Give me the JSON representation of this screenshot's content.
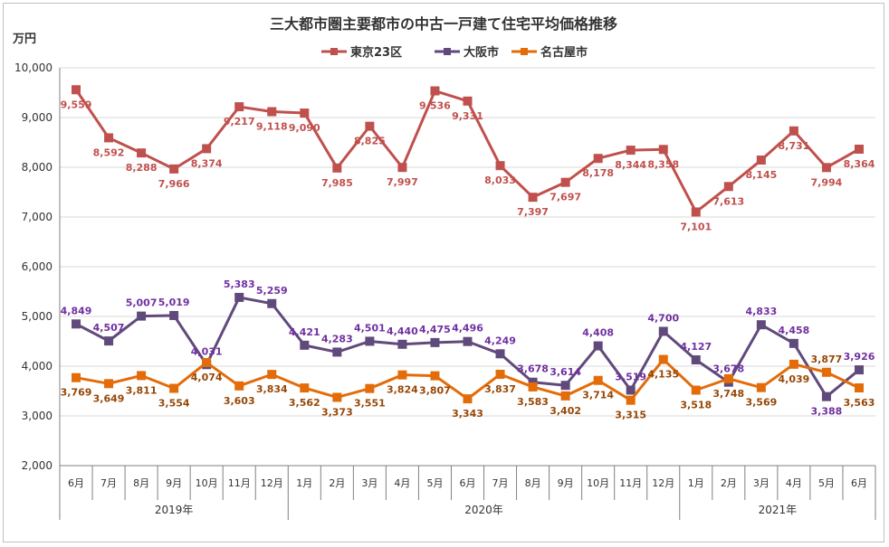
{
  "chart_data": {
    "type": "line",
    "title": "三大都市圏主要都市の中古一戸建て住宅平均価格推移",
    "ylabel": "万円",
    "ylim": [
      2000,
      10000
    ],
    "yticks": [
      2000,
      3000,
      4000,
      5000,
      6000,
      7000,
      8000,
      9000,
      10000
    ],
    "ytick_labels": [
      "2,000",
      "3,000",
      "4,000",
      "5,000",
      "6,000",
      "7,000",
      "8,000",
      "9,000",
      "10,000"
    ],
    "legend_position": "top-center",
    "categories": [
      "6月",
      "7月",
      "8月",
      "9月",
      "10月",
      "11月",
      "12月",
      "1月",
      "2月",
      "3月",
      "4月",
      "5月",
      "6月",
      "7月",
      "8月",
      "9月",
      "10月",
      "11月",
      "12月",
      "1月",
      "2月",
      "3月",
      "4月",
      "5月",
      "6月"
    ],
    "years": [
      {
        "label": "2019年",
        "start": 0,
        "end": 6
      },
      {
        "label": "2020年",
        "start": 7,
        "end": 18
      },
      {
        "label": "2021年",
        "start": 19,
        "end": 24
      }
    ],
    "series": [
      {
        "name": "東京23区",
        "color": "#c0504d",
        "label_color": "#c0504d",
        "values": [
          9559,
          8592,
          8288,
          7966,
          8374,
          9217,
          9118,
          9090,
          7985,
          8825,
          7997,
          9536,
          9331,
          8033,
          7397,
          7697,
          8178,
          8344,
          8358,
          7101,
          7613,
          8145,
          8731,
          7994,
          8364
        ],
        "labels": [
          "9,559",
          "8,592",
          "8,288",
          "7,966",
          "8,374",
          "9,217",
          "9,118",
          "9,090",
          "7,985",
          "8,825",
          "7,997",
          "9,536",
          "9,331",
          "8,033",
          "7,397",
          "7,697",
          "8,178",
          "8,344",
          "8,358",
          "7,101",
          "7,613",
          "8,145",
          "8,731",
          "7,994",
          "8,364"
        ],
        "label_pos": [
          "below",
          "below",
          "below",
          "below",
          "below",
          "below",
          "below",
          "below",
          "below",
          "below",
          "below",
          "below",
          "below",
          "below",
          "below",
          "below",
          "below",
          "below",
          "below",
          "below",
          "below",
          "below",
          "below",
          "below",
          "below"
        ]
      },
      {
        "name": "大阪市",
        "color": "#604a7b",
        "label_color": "#7030a0",
        "values": [
          4849,
          4507,
          5007,
          5019,
          4031,
          5383,
          5259,
          4421,
          4283,
          4501,
          4440,
          4475,
          4496,
          4249,
          3678,
          3614,
          4408,
          3519,
          4700,
          4127,
          3678,
          4833,
          4458,
          3388,
          3926
        ],
        "labels": [
          "4,849",
          "4,507",
          "5,007",
          "5,019",
          "4,031",
          "5,383",
          "5,259",
          "4,421",
          "4,283",
          "4,501",
          "4,440",
          "4,475",
          "4,496",
          "4,249",
          "3,678",
          "3,614",
          "4,408",
          "3,519",
          "4,700",
          "4,127",
          "3,678",
          "4,833",
          "4,458",
          "3,388",
          "3,926"
        ],
        "label_pos": [
          "above",
          "above",
          "above",
          "above",
          "above",
          "above",
          "above",
          "above",
          "above",
          "above",
          "above",
          "above",
          "above",
          "above",
          "above",
          "above",
          "above",
          "above",
          "above",
          "above",
          "above",
          "above",
          "above",
          "below",
          "above"
        ]
      },
      {
        "name": "名古屋市",
        "color": "#e36c09",
        "label_color": "#974706",
        "values": [
          3769,
          3649,
          3811,
          3554,
          4074,
          3603,
          3834,
          3562,
          3373,
          3551,
          3824,
          3807,
          3343,
          3837,
          3583,
          3402,
          3714,
          3315,
          4135,
          3518,
          3748,
          3569,
          4039,
          3877,
          3563
        ],
        "labels": [
          "3,769",
          "3,649",
          "3,811",
          "3,554",
          "4,074",
          "3,603",
          "3,834",
          "3,562",
          "3,373",
          "3,551",
          "3,824",
          "3,807",
          "3,343",
          "3,837",
          "3,583",
          "3,402",
          "3,714",
          "3,315",
          "4,135",
          "3,518",
          "3,748",
          "3,569",
          "4,039",
          "3,877",
          "3,563"
        ],
        "label_pos": [
          "below",
          "below",
          "below",
          "below",
          "below",
          "below",
          "below",
          "below",
          "below",
          "below",
          "below",
          "below",
          "below",
          "below",
          "below",
          "below",
          "below",
          "below",
          "below",
          "below",
          "below",
          "below",
          "below",
          "above",
          "below"
        ]
      }
    ]
  }
}
